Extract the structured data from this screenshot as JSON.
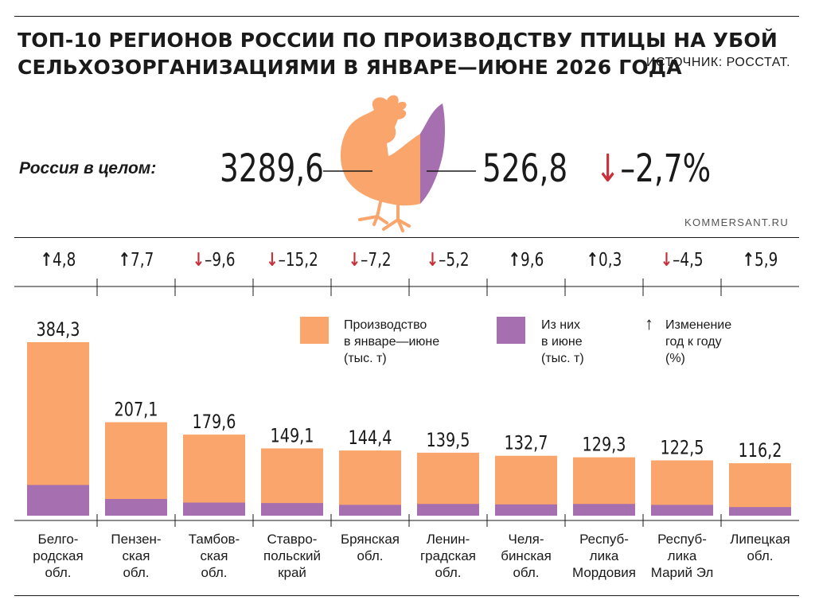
{
  "header": {
    "title_lines": [
      "ТОП-10 РЕГИОНОВ РОССИИ ПО ПРОИЗВОДСТВУ ПТИЦЫ НА УБОЙ",
      "СЕЛЬХОЗОРГАНИЗАЦИЯМИ В ЯНВАРЕ—ИЮНЕ 2026 ГОДА"
    ],
    "source": "ИСТОЧНИК: РОССТАТ."
  },
  "summary": {
    "label": "Россия в целом:",
    "total": "3289,6",
    "june": "526,8",
    "change_arrow": "↓",
    "change": "–2,7%"
  },
  "watermark": "KOMMERSANT.RU",
  "legend": {
    "production": [
      "Производство",
      "в январе—июне",
      "(тыс. т)"
    ],
    "june": [
      "Из них",
      "в июне",
      "(тыс. т)"
    ],
    "change_arrow": "↑",
    "change": [
      "Изменение",
      "год к году",
      "(%)"
    ]
  },
  "colors": {
    "production": "#f9a56b",
    "june": "#a66fb0",
    "down_arrow": "#c8313a",
    "text": "#1a1a1a"
  },
  "chart_data": {
    "type": "bar",
    "title": "ТОП-10 РЕГИОНОВ РОССИИ ПО ПРОИЗВОДСТВУ ПТИЦЫ НА УБОЙ СЕЛЬХОЗОРГАНИЗАЦИЯМИ В ЯНВАРЕ—ИЮНЕ 2026 ГОДА",
    "categories": [
      "Белгородская обл.",
      "Пензенская обл.",
      "Тамбовская обл.",
      "Ставропольский край",
      "Брянская обл.",
      "Ленинградская обл.",
      "Челябинская обл.",
      "Республика Мордовия",
      "Республика Марий Эл",
      "Липецкая обл."
    ],
    "category_lines": [
      [
        "Белго-",
        "родская",
        "обл."
      ],
      [
        "Пензен-",
        "ская",
        "обл."
      ],
      [
        "Тамбов-",
        "ская",
        "обл."
      ],
      [
        "Ставро-",
        "польский",
        "край"
      ],
      [
        "Брянская",
        "обл."
      ],
      [
        "Ленин-",
        "градская",
        "обл."
      ],
      [
        "Челя-",
        "бинская",
        "обл."
      ],
      [
        "Респуб-",
        "лика",
        "Мордовия"
      ],
      [
        "Респуб-",
        "лика",
        "Марий Эл"
      ],
      [
        "Липецкая",
        "обл."
      ]
    ],
    "series": [
      {
        "name": "Производство в январе—июне (тыс. т)",
        "values": [
          384.3,
          207.1,
          179.6,
          149.1,
          144.4,
          139.5,
          132.7,
          129.3,
          122.5,
          116.2
        ],
        "labels": [
          "384,3",
          "207,1",
          "179,6",
          "149,1",
          "144,4",
          "139,5",
          "132,7",
          "129,3",
          "122,5",
          "116,2"
        ]
      },
      {
        "name": "Из них в июне (тыс. т)",
        "values": [
          68,
          37,
          29,
          28,
          24,
          26,
          25,
          26,
          24,
          19
        ]
      },
      {
        "name": "Изменение год к году (%)",
        "values": [
          4.8,
          7.7,
          -9.6,
          -15.2,
          -7.2,
          -5.2,
          9.6,
          0.3,
          -4.5,
          5.9
        ],
        "labels": [
          "4,8",
          "7,7",
          "–9,6",
          "–15,2",
          "–7,2",
          "–5,2",
          "9,6",
          "0,3",
          "–4,5",
          "5,9"
        ]
      }
    ],
    "ylim": [
      0,
      384.3
    ],
    "xlabel": "",
    "ylabel": "",
    "grid": false
  }
}
